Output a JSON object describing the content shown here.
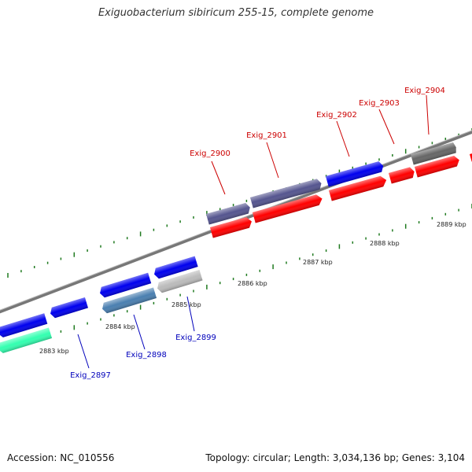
{
  "title": "Exiguobacterium sibiricum 255-15, complete genome",
  "accession": "Accession: NC_010556",
  "topology": "Topology: circular; Length: 3,034,136 bp; Genes: 3,104",
  "colors": {
    "strand_forward": "#0000ee",
    "strand_reverse": "#ff0000",
    "purple": "#55558f",
    "grey": "#bbbbbb",
    "dark_grey": "#666666",
    "teal": "#4a7fb0",
    "mint": "#33ffb0",
    "label_red": "#cc0000",
    "label_blue": "#0000bb",
    "tick_green": "#1f7a1f"
  },
  "kbp_marks": [
    "2883 kbp",
    "2884 kbp",
    "2885 kbp",
    "2886 kbp",
    "2887 kbp",
    "2888 kbp",
    "2889 kbp"
  ],
  "gene_labels_top": [
    "Exig_2900",
    "Exig_2901",
    "Exig_2902",
    "Exig_2903",
    "Exig_2904"
  ],
  "gene_labels_bottom": [
    "Exig_2897",
    "Exig_2898",
    "Exig_2899"
  ]
}
